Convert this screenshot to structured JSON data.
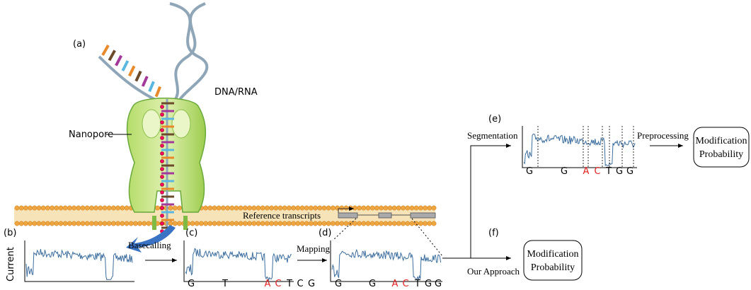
{
  "panels": {
    "a": "(a)",
    "b": "(b)",
    "c": "(c)",
    "d": "(d)",
    "e": "(e)",
    "f": "(f)"
  },
  "labels": {
    "dna_rna": "DNA/RNA",
    "nanopore": "Nanopore",
    "current": "Current",
    "basecalling": "Basecalling",
    "mapping": "Mapping",
    "reference": "Reference transcripts",
    "segmentation": "Segmentation",
    "preprocessing": "Preprocessing",
    "our_approach": "Our Approach"
  },
  "boxes": {
    "e": [
      "Modification",
      "Probability"
    ],
    "f": [
      "Modification",
      "Probability"
    ]
  },
  "bases": {
    "c": [
      "G",
      "T",
      "A",
      "C",
      "T",
      "C",
      "G"
    ],
    "d": [
      "G",
      "G",
      "A",
      "C",
      "T",
      "G",
      "G"
    ],
    "e": [
      "G",
      "G",
      "A",
      "C",
      "T",
      "G",
      "G"
    ]
  }
}
